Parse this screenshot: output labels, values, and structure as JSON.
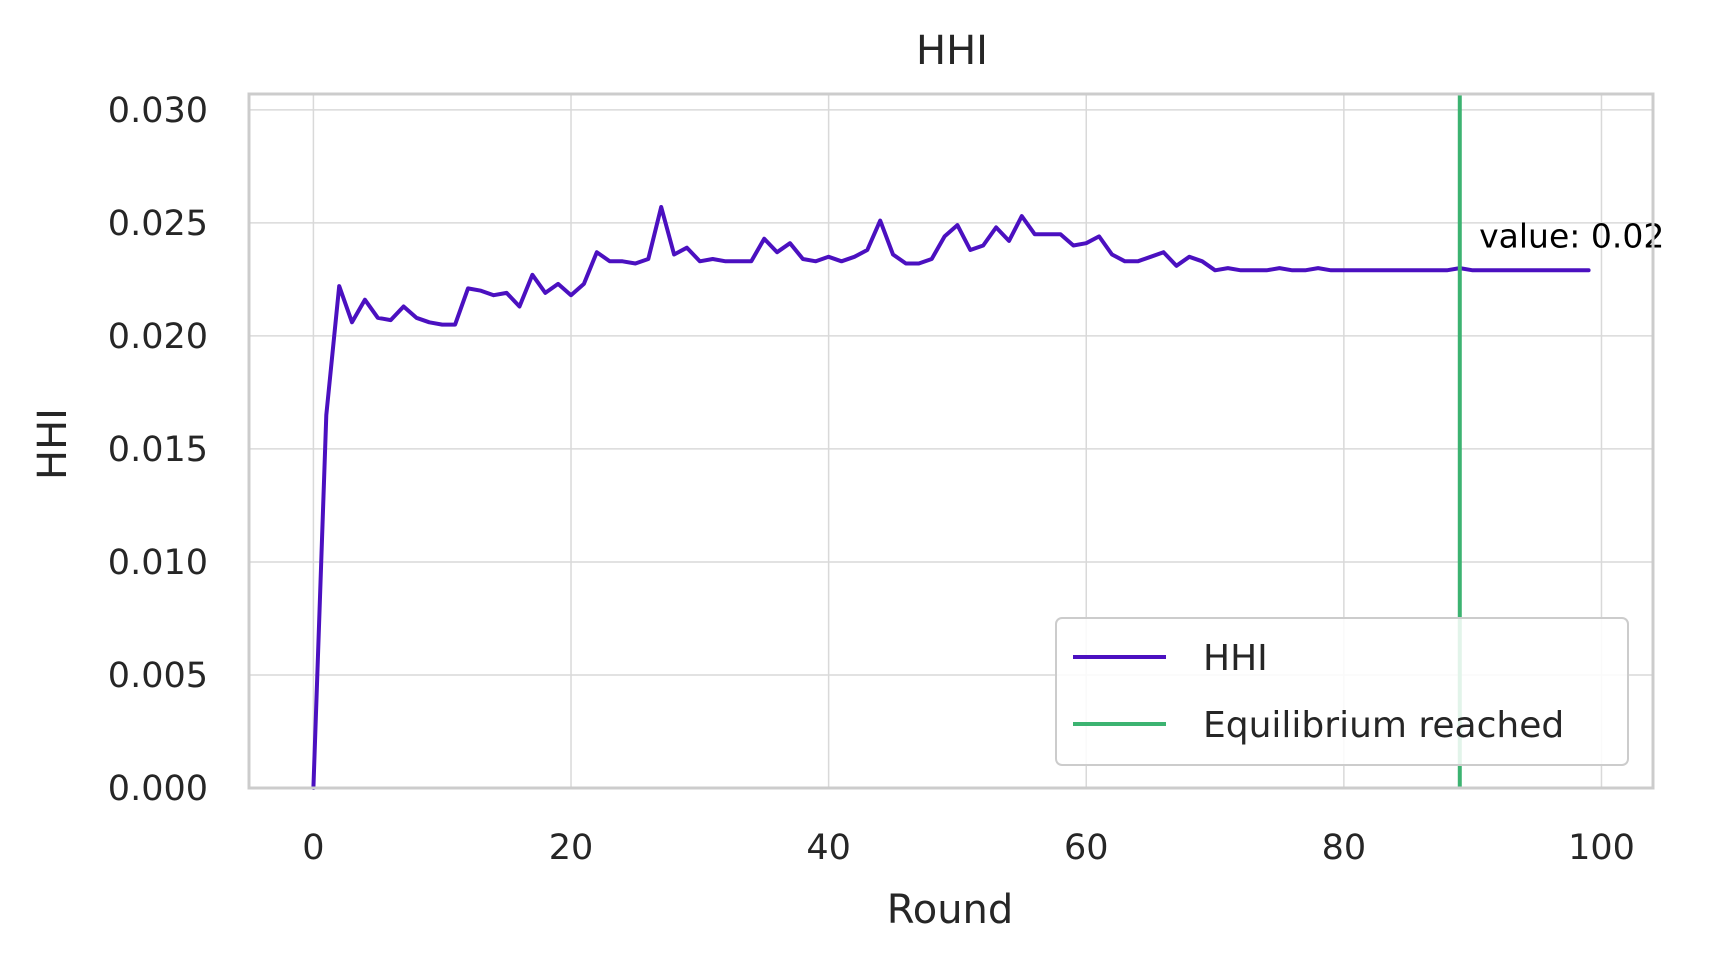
{
  "chart_data": {
    "type": "line",
    "title": "HHI",
    "xlabel": "Round",
    "ylabel": "HHI",
    "xlim": [
      -5,
      104
    ],
    "ylim": [
      0,
      0.0307
    ],
    "xticks": [
      0,
      20,
      40,
      60,
      80,
      100
    ],
    "xtick_labels": [
      "0",
      "20",
      "40",
      "60",
      "80",
      "100"
    ],
    "yticks": [
      0,
      0.005,
      0.01,
      0.015,
      0.02,
      0.025,
      0.03
    ],
    "ytick_labels": [
      "0.000",
      "0.005",
      "0.010",
      "0.015",
      "0.020",
      "0.025",
      "0.030"
    ],
    "grid": true,
    "legend_position": "lower right",
    "series": [
      {
        "name": "HHI",
        "color": "#4b10c0",
        "x": [
          0,
          1,
          2,
          3,
          4,
          5,
          6,
          7,
          8,
          9,
          10,
          11,
          12,
          13,
          14,
          15,
          16,
          17,
          18,
          19,
          20,
          21,
          22,
          23,
          24,
          25,
          26,
          27,
          28,
          29,
          30,
          31,
          32,
          33,
          34,
          35,
          36,
          37,
          38,
          39,
          40,
          41,
          42,
          43,
          44,
          45,
          46,
          47,
          48,
          49,
          50,
          51,
          52,
          53,
          54,
          55,
          56,
          57,
          58,
          59,
          60,
          61,
          62,
          63,
          64,
          65,
          66,
          67,
          68,
          69,
          70,
          71,
          72,
          73,
          74,
          75,
          76,
          77,
          78,
          79,
          80,
          81,
          82,
          83,
          84,
          85,
          86,
          87,
          88,
          89,
          90,
          91,
          92,
          93,
          94,
          95,
          96,
          97,
          98,
          99
        ],
        "y": [
          0.0,
          0.0165,
          0.0222,
          0.0206,
          0.0216,
          0.0208,
          0.0207,
          0.0213,
          0.0208,
          0.0206,
          0.0205,
          0.0205,
          0.0221,
          0.022,
          0.0218,
          0.0219,
          0.0213,
          0.0227,
          0.0219,
          0.0223,
          0.0218,
          0.0223,
          0.0237,
          0.0233,
          0.0233,
          0.0232,
          0.0234,
          0.0257,
          0.0236,
          0.0239,
          0.0233,
          0.0234,
          0.0233,
          0.0233,
          0.0233,
          0.0243,
          0.0237,
          0.0241,
          0.0234,
          0.0233,
          0.0235,
          0.0233,
          0.0235,
          0.0238,
          0.0251,
          0.0236,
          0.0232,
          0.0232,
          0.0234,
          0.0244,
          0.0249,
          0.0238,
          0.024,
          0.0248,
          0.0242,
          0.0253,
          0.0245,
          0.0245,
          0.0245,
          0.024,
          0.0241,
          0.0244,
          0.0236,
          0.0233,
          0.0233,
          0.0235,
          0.0237,
          0.0231,
          0.0235,
          0.0233,
          0.0229,
          0.023,
          0.0229,
          0.0229,
          0.0229,
          0.023,
          0.0229,
          0.0229,
          0.023,
          0.0229,
          0.0229,
          0.0229,
          0.0229,
          0.0229,
          0.0229,
          0.0229,
          0.0229,
          0.0229,
          0.0229,
          0.023,
          0.0229,
          0.0229,
          0.0229,
          0.0229,
          0.0229,
          0.0229,
          0.0229,
          0.0229,
          0.0229,
          0.0229
        ]
      }
    ],
    "vlines": [
      {
        "name": "Equilibrium reached",
        "x": 89,
        "color": "#3cb371"
      }
    ],
    "annotations": [
      {
        "text": "value: 0.02",
        "x": 90.5,
        "y": 0.0239
      }
    ]
  }
}
